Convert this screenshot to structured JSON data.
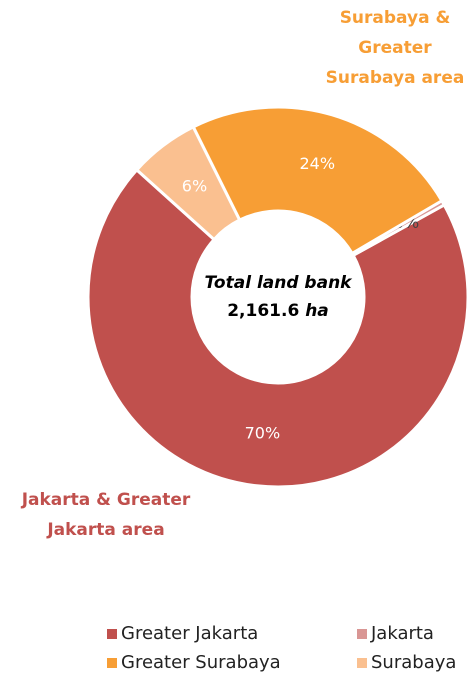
{
  "chart_data": {
    "type": "pie",
    "categories": [
      "Greater Jakarta",
      "Jakarta",
      "Greater Surabaya",
      "Surabaya"
    ],
    "values": [
      70,
      0.4,
      24,
      6
    ],
    "value_labels": [
      "70%",
      "0%",
      "24%",
      "6%"
    ],
    "colors": [
      "#c0504d",
      "#d99694",
      "#f79e35",
      "#fac090"
    ],
    "center_text": {
      "line1": "Total land bank",
      "amount": "2,161.6",
      "unit": "ha"
    },
    "annotations": {
      "surabaya": [
        "Surabaya &",
        "Greater",
        "Surabaya area"
      ],
      "jakarta": [
        "Jakarta & Greater",
        "Jakarta area"
      ]
    },
    "legend": "bottom"
  }
}
